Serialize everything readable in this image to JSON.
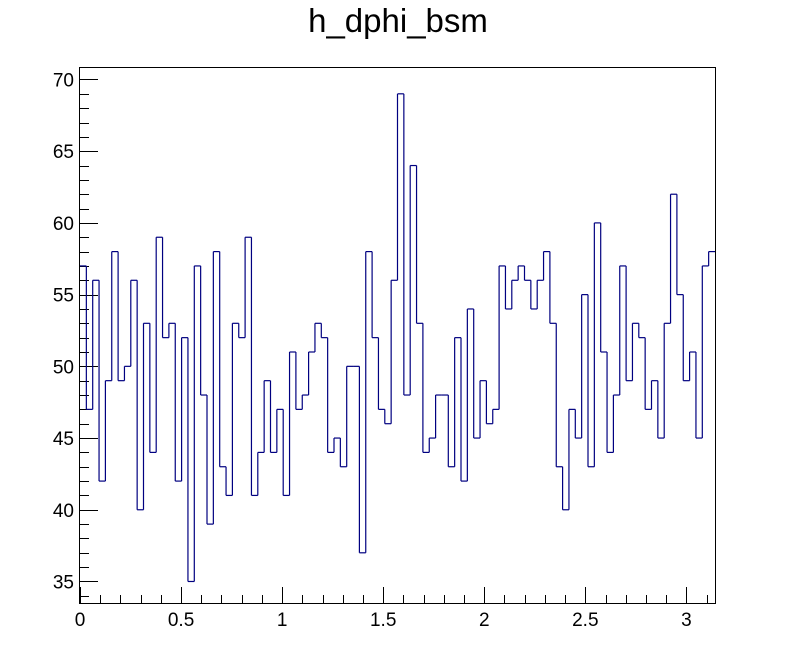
{
  "chart_data": {
    "type": "histogram",
    "title": "h_dphi_bsm",
    "xlabel": "",
    "ylabel": "",
    "xlim": [
      0,
      3.14159
    ],
    "ylim": [
      33.5,
      70.8
    ],
    "grid": false,
    "line_color": "#000080",
    "bin_width": 0.0314159,
    "x_ticks": [
      0,
      0.5,
      1,
      1.5,
      2,
      2.5,
      3
    ],
    "x_tick_labels": [
      "0",
      "0.5",
      "1",
      "1.5",
      "2",
      "2.5",
      "3"
    ],
    "y_ticks": [
      35,
      40,
      45,
      50,
      55,
      60,
      65,
      70
    ],
    "y_tick_labels": [
      "35",
      "40",
      "45",
      "50",
      "55",
      "60",
      "65",
      "70"
    ],
    "values": [
      57,
      47,
      56,
      42,
      49,
      58,
      49,
      50,
      56,
      40,
      53,
      44,
      59,
      52,
      53,
      42,
      52,
      35,
      57,
      48,
      39,
      58,
      43,
      41,
      53,
      52,
      59,
      41,
      44,
      49,
      44,
      47,
      41,
      51,
      47,
      48,
      51,
      53,
      52,
      44,
      45,
      43,
      50,
      50,
      37,
      58,
      52,
      47,
      46,
      56,
      69,
      48,
      64,
      53,
      44,
      45,
      48,
      48,
      43,
      52,
      42,
      54,
      45,
      49,
      46,
      47,
      57,
      54,
      56,
      57,
      56,
      54,
      56,
      58,
      53,
      43,
      40,
      47,
      45,
      55,
      43,
      60,
      51,
      44,
      48,
      57,
      49,
      53,
      52,
      47,
      49,
      45,
      53,
      62,
      55,
      49,
      51,
      45,
      57,
      58
    ]
  }
}
